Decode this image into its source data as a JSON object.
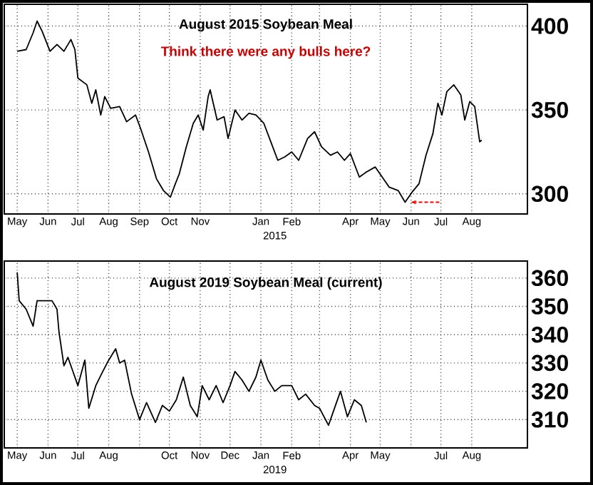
{
  "chart_data": [
    {
      "type": "line",
      "title": "August 2015 Soybean Meal",
      "subtitle": "Think there were any bulls here?",
      "xlabel": "2015",
      "color": "#000000",
      "line_style": "solid",
      "grid": true,
      "x": [
        "2014-05-01",
        "2014-05-10",
        "2014-05-17",
        "2014-05-21",
        "2014-05-26",
        "2014-06-03",
        "2014-06-10",
        "2014-06-17",
        "2014-06-24",
        "2014-06-28",
        "2014-07-01",
        "2014-07-10",
        "2014-07-15",
        "2014-07-19",
        "2014-07-24",
        "2014-07-28",
        "2014-08-03",
        "2014-08-12",
        "2014-08-19",
        "2014-08-28",
        "2014-09-02",
        "2014-09-10",
        "2014-09-18",
        "2014-09-25",
        "2014-10-02",
        "2014-10-07",
        "2014-10-11",
        "2014-10-18",
        "2014-10-25",
        "2014-10-30",
        "2014-11-04",
        "2014-11-09",
        "2014-11-11",
        "2014-11-18",
        "2014-11-25",
        "2014-11-29",
        "2014-12-06",
        "2014-12-13",
        "2014-12-20",
        "2014-12-27",
        "2015-01-04",
        "2015-01-11",
        "2015-01-18",
        "2015-01-25",
        "2015-02-01",
        "2015-02-08",
        "2015-02-17",
        "2015-02-24",
        "2015-03-03",
        "2015-03-12",
        "2015-03-19",
        "2015-03-26",
        "2015-04-01",
        "2015-04-10",
        "2015-04-17",
        "2015-04-26",
        "2015-05-03",
        "2015-05-10",
        "2015-05-19",
        "2015-05-26",
        "2015-06-02",
        "2015-06-09",
        "2015-06-16",
        "2015-06-23",
        "2015-06-28",
        "2015-07-02",
        "2015-07-07",
        "2015-07-14",
        "2015-07-21",
        "2015-07-25",
        "2015-07-30",
        "2015-08-04",
        "2015-08-09",
        "2015-08-11"
      ],
      "values": [
        385,
        386,
        396,
        403,
        397,
        385,
        389,
        385,
        392,
        386,
        369,
        365,
        354,
        362,
        347,
        358,
        351,
        352,
        343,
        347,
        339,
        325,
        309,
        302,
        298,
        306,
        312,
        328,
        342,
        347,
        338,
        358,
        362,
        344,
        346,
        333,
        350,
        344,
        348,
        347,
        342,
        331,
        320,
        322,
        325,
        320,
        333,
        337,
        328,
        323,
        325,
        320,
        324,
        310,
        313,
        316,
        310,
        304,
        302,
        295,
        301,
        306,
        323,
        336,
        354,
        347,
        361,
        365,
        359,
        344,
        355,
        352,
        331,
        332
      ],
      "xlim": [
        "2014-04-18",
        "2015-09-26"
      ],
      "ylim": [
        288,
        413
      ],
      "yticks": [
        300,
        350,
        400
      ],
      "xticks": [
        {
          "value": "2014-05-01",
          "label": "May"
        },
        {
          "value": "2014-06-01",
          "label": "Jun"
        },
        {
          "value": "2014-07-01",
          "label": "Jul"
        },
        {
          "value": "2014-08-01",
          "label": "Aug"
        },
        {
          "value": "2014-09-01",
          "label": "Sep"
        },
        {
          "value": "2014-10-01",
          "label": "Oct"
        },
        {
          "value": "2014-11-01",
          "label": "Nov"
        },
        {
          "value": "2014-12-01",
          "label": null
        },
        {
          "value": "2015-01-01",
          "label": "Jan"
        },
        {
          "value": "2015-02-01",
          "label": "Feb"
        },
        {
          "value": "2015-03-01",
          "label": null
        },
        {
          "value": "2015-04-01",
          "label": "Apr"
        },
        {
          "value": "2015-05-01",
          "label": "May"
        },
        {
          "value": "2015-06-01",
          "label": "Jun"
        },
        {
          "value": "2015-07-01",
          "label": "Jul"
        },
        {
          "value": "2015-08-01",
          "label": "Aug"
        }
      ]
    },
    {
      "type": "line",
      "title": "August 2019 Soybean Meal (current)",
      "xlabel": "2019",
      "color": "#000000",
      "line_style": "solid",
      "grid": true,
      "x": [
        "2018-05-01",
        "2018-05-03",
        "2018-05-10",
        "2018-05-17",
        "2018-05-21",
        "2018-05-28",
        "2018-06-05",
        "2018-06-10",
        "2018-06-12",
        "2018-06-17",
        "2018-06-21",
        "2018-06-26",
        "2018-07-01",
        "2018-07-08",
        "2018-07-12",
        "2018-07-19",
        "2018-07-26",
        "2018-08-01",
        "2018-08-08",
        "2018-08-12",
        "2018-08-17",
        "2018-08-24",
        "2018-09-01",
        "2018-09-08",
        "2018-09-17",
        "2018-09-24",
        "2018-10-01",
        "2018-10-08",
        "2018-10-15",
        "2018-10-22",
        "2018-10-29",
        "2018-11-03",
        "2018-11-10",
        "2018-11-17",
        "2018-11-24",
        "2018-12-01",
        "2018-12-06",
        "2018-12-13",
        "2018-12-20",
        "2018-12-27",
        "2019-01-01",
        "2019-01-08",
        "2019-01-15",
        "2019-01-22",
        "2019-02-01",
        "2019-02-08",
        "2019-02-15",
        "2019-02-24",
        "2019-03-01",
        "2019-03-10",
        "2019-03-15",
        "2019-03-22",
        "2019-03-29",
        "2019-04-05",
        "2019-04-12",
        "2019-04-17"
      ],
      "values": [
        362,
        352,
        349,
        343,
        352,
        352,
        352,
        349,
        341,
        329,
        332,
        327,
        322,
        331,
        314,
        322,
        327,
        331,
        335,
        330,
        331,
        319,
        310,
        316,
        309,
        315,
        313,
        317,
        325,
        315,
        311,
        322,
        317,
        322,
        316,
        322,
        327,
        324,
        320,
        325,
        331,
        324,
        320,
        322,
        322,
        317,
        319,
        315,
        314,
        308,
        313,
        320,
        311,
        317,
        315,
        309
      ],
      "xlim": [
        "2018-04-18",
        "2019-09-26"
      ],
      "ylim": [
        300,
        366
      ],
      "yticks": [
        310,
        320,
        330,
        340,
        350,
        360
      ],
      "xticks": [
        {
          "value": "2018-05-01",
          "label": "May"
        },
        {
          "value": "2018-06-01",
          "label": "Jun"
        },
        {
          "value": "2018-07-01",
          "label": "Jul"
        },
        {
          "value": "2018-08-01",
          "label": "Aug"
        },
        {
          "value": "2018-09-01",
          "label": null
        },
        {
          "value": "2018-10-01",
          "label": "Oct"
        },
        {
          "value": "2018-11-01",
          "label": "Nov"
        },
        {
          "value": "2018-12-01",
          "label": "Dec"
        },
        {
          "value": "2019-01-01",
          "label": "Jan"
        },
        {
          "value": "2019-02-01",
          "label": "Feb"
        },
        {
          "value": "2019-03-01",
          "label": null
        },
        {
          "value": "2019-04-01",
          "label": "Apr"
        },
        {
          "value": "2019-05-01",
          "label": "May"
        },
        {
          "value": "2019-06-01",
          "label": null
        },
        {
          "value": "2019-07-01",
          "label": "Jul"
        },
        {
          "value": "2019-08-01",
          "label": "Aug"
        }
      ]
    }
  ]
}
